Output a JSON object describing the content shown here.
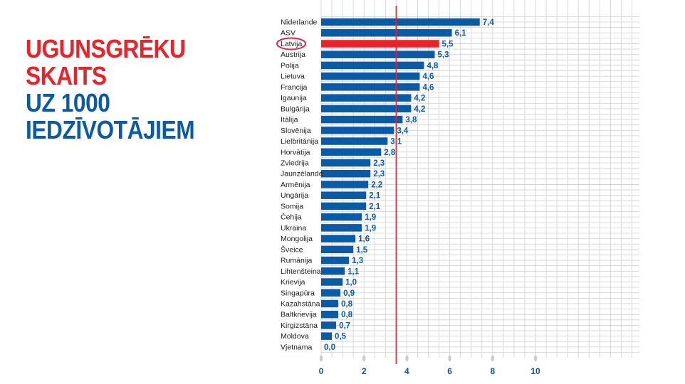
{
  "title": {
    "lines": [
      "UGUNSGRĒKU",
      "SKAITS",
      "UZ 1000",
      "IEDZĪVOTĀJIEM"
    ]
  },
  "colors": {
    "bar": "#0b5aa6",
    "highlight": "#e8232a",
    "label": "#0b5aa6",
    "grid": "#d0d0d0",
    "reference_line": "#e8232a",
    "circle": "#d7264f"
  },
  "chart_data": {
    "type": "bar",
    "orientation": "horizontal",
    "categories": [
      "Nīderlande",
      "ASV",
      "Latvija",
      "Austrija",
      "Polija",
      "Lietuva",
      "Francija",
      "Igaunija",
      "Bulgārija",
      "Itālija",
      "Slovēnija",
      "Lielbritānija",
      "Horvātija",
      "Zviedrija",
      "Jaunzēlande",
      "Armēnija",
      "Ungārija",
      "Somija",
      "Čehija",
      "Ukraina",
      "Mongolija",
      "Šveice",
      "Rumānija",
      "Lihtenšteina",
      "Krievija",
      "Singapūra",
      "Kazahstāna",
      "Baltkrievija",
      "Kirgizstāna",
      "Moldova",
      "Vjetnama"
    ],
    "values": [
      7.4,
      6.1,
      5.5,
      5.3,
      4.8,
      4.6,
      4.6,
      4.2,
      4.2,
      3.8,
      3.4,
      3.1,
      2.8,
      2.3,
      2.3,
      2.2,
      2.1,
      2.1,
      1.9,
      1.9,
      1.6,
      1.5,
      1.3,
      1.1,
      1.0,
      0.9,
      0.8,
      0.8,
      0.7,
      0.5,
      0.0
    ],
    "value_labels": [
      "7,4",
      "6,1",
      "5,5",
      "5,3",
      "4,8",
      "4,6",
      "4,6",
      "4,2",
      "4,2",
      "3,8",
      "3,4",
      "3,1",
      "2,8",
      "2,3",
      "2,3",
      "2,2",
      "2,1",
      "2,1",
      "1,9",
      "1,9",
      "1,6",
      "1,5",
      "1,3",
      "1,1",
      "1,0",
      "0,9",
      "0,8",
      "0,8",
      "0,7",
      "0,5",
      "0,0"
    ],
    "highlight_category": "Latvija",
    "reference_value": 3.5,
    "x_ticks": [
      0,
      2,
      4,
      6,
      8,
      10
    ],
    "xlim": [
      0,
      15
    ],
    "grid": true,
    "title": "UGUNSGRĒKU SKAITS UZ 1000 IEDZĪVOTĀJIEM",
    "xlabel": "",
    "ylabel": ""
  }
}
